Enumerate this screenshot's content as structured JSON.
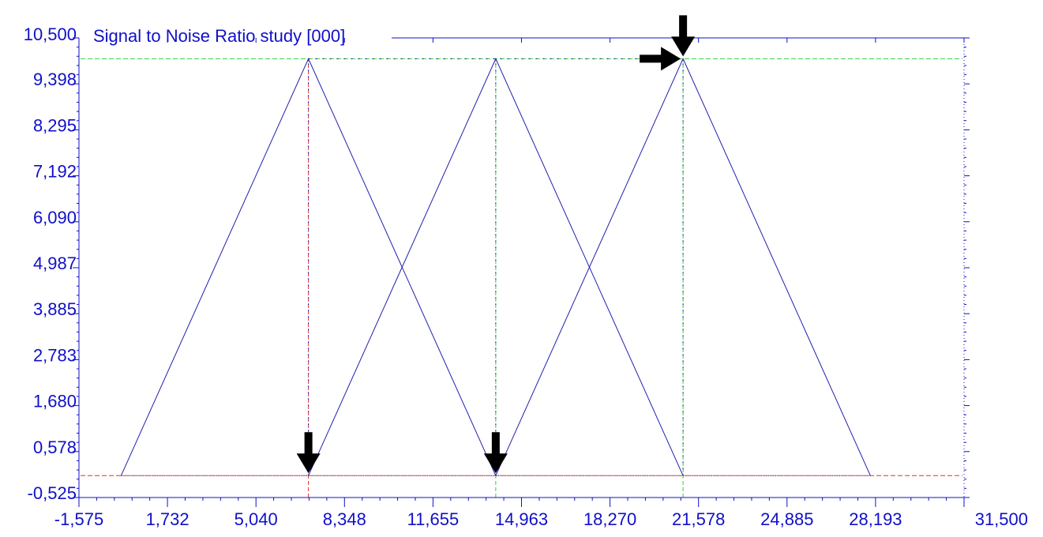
{
  "chart_data": {
    "type": "line",
    "title": "Signal to Noise Ratio study [000]",
    "xlabel": "",
    "ylabel": "",
    "xlim": [
      -1575,
      31500
    ],
    "ylim": [
      -525,
      10500
    ],
    "x_ticks": [
      "-1,575",
      "1,732",
      "5,040",
      "8,348",
      "11,655",
      "14,963",
      "18,270",
      "21,578",
      "24,885",
      "28,193",
      "31,500"
    ],
    "y_ticks": [
      "10,500",
      "9,398",
      "8,295",
      "7,192",
      "6,090",
      "4,987",
      "3,885",
      "2,783",
      "1,680",
      "0,578",
      "-0,525"
    ],
    "grid": false,
    "series": [
      {
        "x": [
          0,
          7000,
          14000
        ],
        "y": [
          0,
          10000,
          0
        ]
      },
      {
        "x": [
          7000,
          14000,
          21000
        ],
        "y": [
          0,
          10000,
          0
        ]
      },
      {
        "x": [
          14000,
          21000,
          28000
        ],
        "y": [
          0,
          10000,
          0
        ]
      }
    ],
    "reference_lines": {
      "vertical": [
        7000,
        14000,
        21000
      ],
      "horizontal": [
        0,
        10000
      ]
    },
    "markers": [
      {
        "x": 7000,
        "y": 0,
        "direction": "down"
      },
      {
        "x": 14000,
        "y": 0,
        "direction": "down"
      },
      {
        "x": 21000,
        "y": 10000,
        "direction": "down"
      },
      {
        "x": 21000,
        "y": 10000,
        "direction": "right"
      }
    ],
    "colors": {
      "axis": "#1010c8",
      "series": "#2020b0",
      "ref_red": "#e03030",
      "ref_green": "#30d030",
      "marker": "#000000"
    }
  }
}
